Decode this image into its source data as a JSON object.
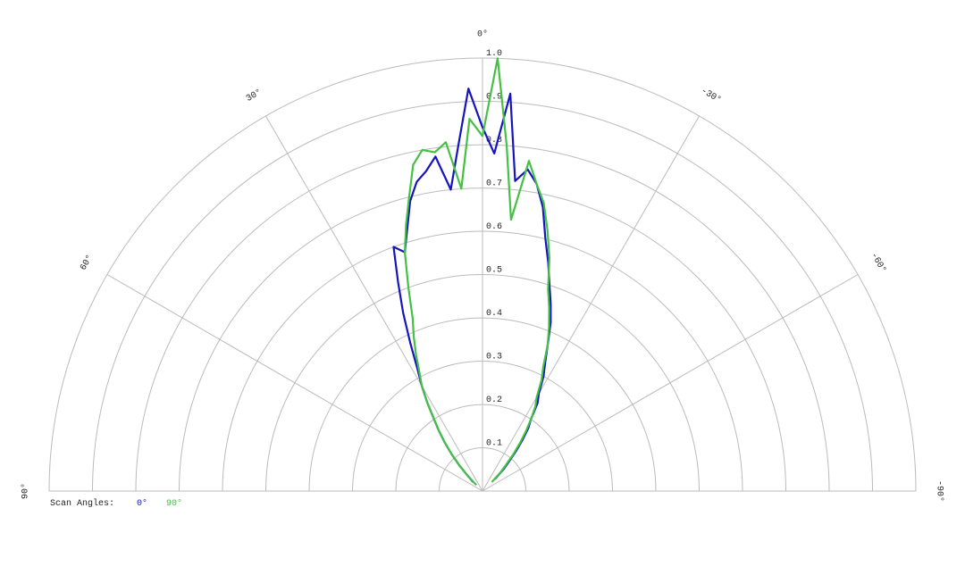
{
  "chart_data": {
    "type": "polar",
    "thetalim": [
      -90,
      90
    ],
    "rlim": [
      0,
      1
    ],
    "thetaticks": [
      {
        "value": 90,
        "label": "90°"
      },
      {
        "value": 60,
        "label": "60°"
      },
      {
        "value": 30,
        "label": "30°"
      },
      {
        "value": 0,
        "label": "0°"
      },
      {
        "value": -30,
        "label": "-30°"
      },
      {
        "value": -60,
        "label": "-60°"
      },
      {
        "value": -90,
        "label": "-90°"
      }
    ],
    "rticks": [
      0.1,
      0.2,
      0.3,
      0.4,
      0.5,
      0.6,
      0.7,
      0.8,
      0.9,
      {
        "value": 1,
        "label": "1.0"
      }
    ],
    "grid": true,
    "legend_title": "Scan Angles:",
    "legend": "bottom-left",
    "theta": [
      -46,
      -44,
      -42,
      -40,
      -38,
      -36,
      -34,
      -32,
      -30,
      -28,
      -26,
      -24,
      -22,
      -20,
      -18,
      -16,
      -14,
      -12,
      -10,
      -8,
      -6,
      -4,
      -2,
      0,
      2,
      4,
      6,
      8,
      10,
      12,
      14,
      16,
      18,
      20,
      22,
      24,
      26,
      28,
      30,
      32,
      34,
      36,
      38,
      40,
      42,
      44,
      46
    ],
    "series": [
      {
        "name": "0°",
        "color": "#1414c0",
        "values": [
          0.04,
          0.07,
          0.09,
          0.12,
          0.15,
          0.18,
          0.2,
          0.24,
          0.26,
          0.3,
          0.33,
          0.37,
          0.42,
          0.46,
          0.5,
          0.55,
          0.6,
          0.67,
          0.72,
          0.75,
          0.72,
          0.92,
          0.78,
          0.84,
          0.93,
          0.8,
          0.7,
          0.78,
          0.75,
          0.73,
          0.69,
          0.63,
          0.58,
          0.6,
          0.52,
          0.45,
          0.38,
          0.32,
          0.28,
          0.24,
          0.2,
          0.17,
          0.14,
          0.11,
          0.08,
          0.05,
          0.03
        ]
      },
      {
        "name": "90°",
        "color": "#44c044",
        "values": [
          0.03,
          0.06,
          0.08,
          0.11,
          0.14,
          0.17,
          0.2,
          0.23,
          0.25,
          0.29,
          0.32,
          0.37,
          0.41,
          0.45,
          0.49,
          0.56,
          0.62,
          0.68,
          0.72,
          0.77,
          0.63,
          0.8,
          1.0,
          0.82,
          0.86,
          0.7,
          0.81,
          0.79,
          0.8,
          0.77,
          0.7,
          0.64,
          0.58,
          0.5,
          0.43,
          0.39,
          0.35,
          0.31,
          0.28,
          0.24,
          0.2,
          0.17,
          0.14,
          0.11,
          0.08,
          0.05,
          0.02
        ]
      }
    ]
  }
}
